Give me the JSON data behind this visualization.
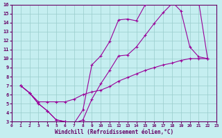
{
  "xlabel": "Windchill (Refroidissement éolien,°C)",
  "background_color": "#c5eef0",
  "grid_color": "#99cccc",
  "line_color": "#990099",
  "border_color": "#660066",
  "xlim": [
    0,
    23
  ],
  "ylim": [
    3,
    16
  ],
  "xticks": [
    0,
    1,
    2,
    3,
    4,
    5,
    6,
    7,
    8,
    9,
    10,
    11,
    12,
    13,
    14,
    15,
    16,
    17,
    18,
    19,
    20,
    21,
    22,
    23
  ],
  "yticks": [
    3,
    4,
    5,
    6,
    7,
    8,
    9,
    10,
    11,
    12,
    13,
    14,
    15,
    16
  ],
  "curve1_x": [
    1,
    2,
    3,
    4,
    5,
    6,
    7,
    8,
    9,
    10,
    11,
    12,
    13,
    14,
    15,
    16,
    17,
    18,
    19,
    20,
    21,
    22
  ],
  "curve1_y": [
    7.0,
    6.2,
    5.0,
    4.2,
    3.2,
    3.0,
    2.8,
    4.3,
    9.3,
    10.3,
    11.9,
    14.3,
    14.4,
    14.2,
    16.0,
    16.2,
    16.4,
    16.3,
    15.3,
    11.3,
    10.2,
    10.0
  ],
  "curve2_x": [
    1,
    2,
    3,
    4,
    5,
    6,
    7,
    8,
    9,
    10,
    11,
    12,
    13,
    14,
    15,
    16,
    17,
    18,
    19,
    20,
    21,
    22
  ],
  "curve2_y": [
    7.0,
    6.2,
    5.0,
    4.2,
    3.2,
    3.0,
    2.8,
    3.2,
    5.5,
    7.2,
    8.7,
    10.3,
    10.4,
    11.3,
    12.6,
    13.9,
    15.1,
    16.1,
    16.3,
    16.3,
    16.3,
    10.0
  ],
  "curve3_x": [
    1,
    2,
    3,
    4,
    5,
    6,
    7,
    8,
    9,
    10,
    11,
    12,
    13,
    14,
    15,
    16,
    17,
    18,
    19,
    20,
    21,
    22
  ],
  "curve3_y": [
    7.0,
    6.2,
    5.2,
    5.2,
    5.2,
    5.2,
    5.5,
    6.0,
    6.3,
    6.5,
    6.9,
    7.5,
    7.9,
    8.3,
    8.7,
    9.0,
    9.3,
    9.5,
    9.8,
    10.0,
    10.0,
    10.0
  ]
}
